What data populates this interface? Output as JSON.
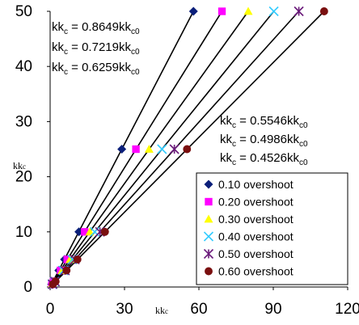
{
  "chart_data": {
    "type": "scatter",
    "xlabel": "kk",
    "xlabel_sub": "c",
    "ylabel": "kk",
    "ylabel_sub": "c",
    "xlim": [
      0,
      120
    ],
    "ylim": [
      0,
      50
    ],
    "x_ticks": [
      0,
      30,
      60,
      90,
      120
    ],
    "x_tick_labels": [
      "0",
      "30",
      "60",
      "90",
      "120"
    ],
    "y_ticks": [
      0,
      10,
      20,
      30,
      40,
      50
    ],
    "y_tick_labels": [
      "0",
      "10",
      "20",
      "30",
      "40",
      "50"
    ],
    "grid": false,
    "legend_position": "bottom-right",
    "annotations_top_left": [
      {
        "lhs": "kk",
        "lhs_sub": "c",
        "rhs": " = 0.8649kk",
        "rhs_sub": "c0"
      },
      {
        "lhs": "kk",
        "lhs_sub": "c",
        "rhs": " = 0.7219kk",
        "rhs_sub": "c0"
      },
      {
        "lhs": "kk",
        "lhs_sub": "c",
        "rhs": " = 0.6259kk",
        "rhs_sub": "c0"
      }
    ],
    "annotations_right": [
      {
        "lhs": "kk",
        "lhs_sub": "c",
        "rhs": "  = 0.5546kk",
        "rhs_sub": "c0"
      },
      {
        "lhs": "kk",
        "lhs_sub": "c",
        "rhs": " = 0.4986kk",
        "rhs_sub": "c0"
      },
      {
        "lhs": "kk",
        "lhs_sub": "c",
        "rhs": " = 0.4526kk",
        "rhs_sub": "c0"
      }
    ],
    "series": [
      {
        "name": "0.10 overshoot",
        "marker": "diamond",
        "color": "#0b1f7a",
        "slope": 0.8649,
        "points": [
          [
            57.8,
            50
          ],
          [
            28.9,
            25
          ],
          [
            11.6,
            10
          ],
          [
            5.8,
            5
          ],
          [
            3.5,
            3
          ],
          [
            1.2,
            1
          ],
          [
            0.6,
            0.5
          ]
        ]
      },
      {
        "name": "0.20 overshoot",
        "marker": "square",
        "color": "#ff00ff",
        "slope": 0.7219,
        "points": [
          [
            69.3,
            50
          ],
          [
            34.6,
            25
          ],
          [
            13.9,
            10
          ],
          [
            6.9,
            5
          ],
          [
            4.2,
            3
          ],
          [
            1.4,
            1
          ],
          [
            0.7,
            0.5
          ]
        ]
      },
      {
        "name": "0.30 overshoot",
        "marker": "triangle",
        "color": "#ffff00",
        "slope": 0.6259,
        "points": [
          [
            79.9,
            50
          ],
          [
            39.9,
            25
          ],
          [
            16.0,
            10
          ],
          [
            8.0,
            5
          ],
          [
            4.8,
            3
          ],
          [
            1.6,
            1
          ],
          [
            0.8,
            0.5
          ]
        ]
      },
      {
        "name": "0.40 overshoot",
        "marker": "x",
        "color": "#33ccff",
        "slope": 0.5546,
        "points": [
          [
            90.2,
            50
          ],
          [
            45.1,
            25
          ],
          [
            18.0,
            10
          ],
          [
            9.0,
            5
          ],
          [
            5.4,
            3
          ],
          [
            1.8,
            1
          ],
          [
            0.9,
            0.5
          ]
        ]
      },
      {
        "name": "0.50 overshoot",
        "marker": "star",
        "color": "#6a1a7a",
        "slope": 0.4986,
        "points": [
          [
            100.3,
            50
          ],
          [
            50.1,
            25
          ],
          [
            20.1,
            10
          ],
          [
            10.0,
            5
          ],
          [
            6.0,
            3
          ],
          [
            2.0,
            1
          ],
          [
            1.0,
            0.5
          ]
        ]
      },
      {
        "name": "0.60 overshoot",
        "marker": "circle",
        "color": "#7a0f0f",
        "slope": 0.4526,
        "points": [
          [
            110.5,
            50
          ],
          [
            55.2,
            25
          ],
          [
            22.1,
            10
          ],
          [
            11.0,
            5
          ],
          [
            6.6,
            3
          ],
          [
            2.2,
            1
          ],
          [
            1.1,
            0.5
          ]
        ]
      }
    ]
  }
}
